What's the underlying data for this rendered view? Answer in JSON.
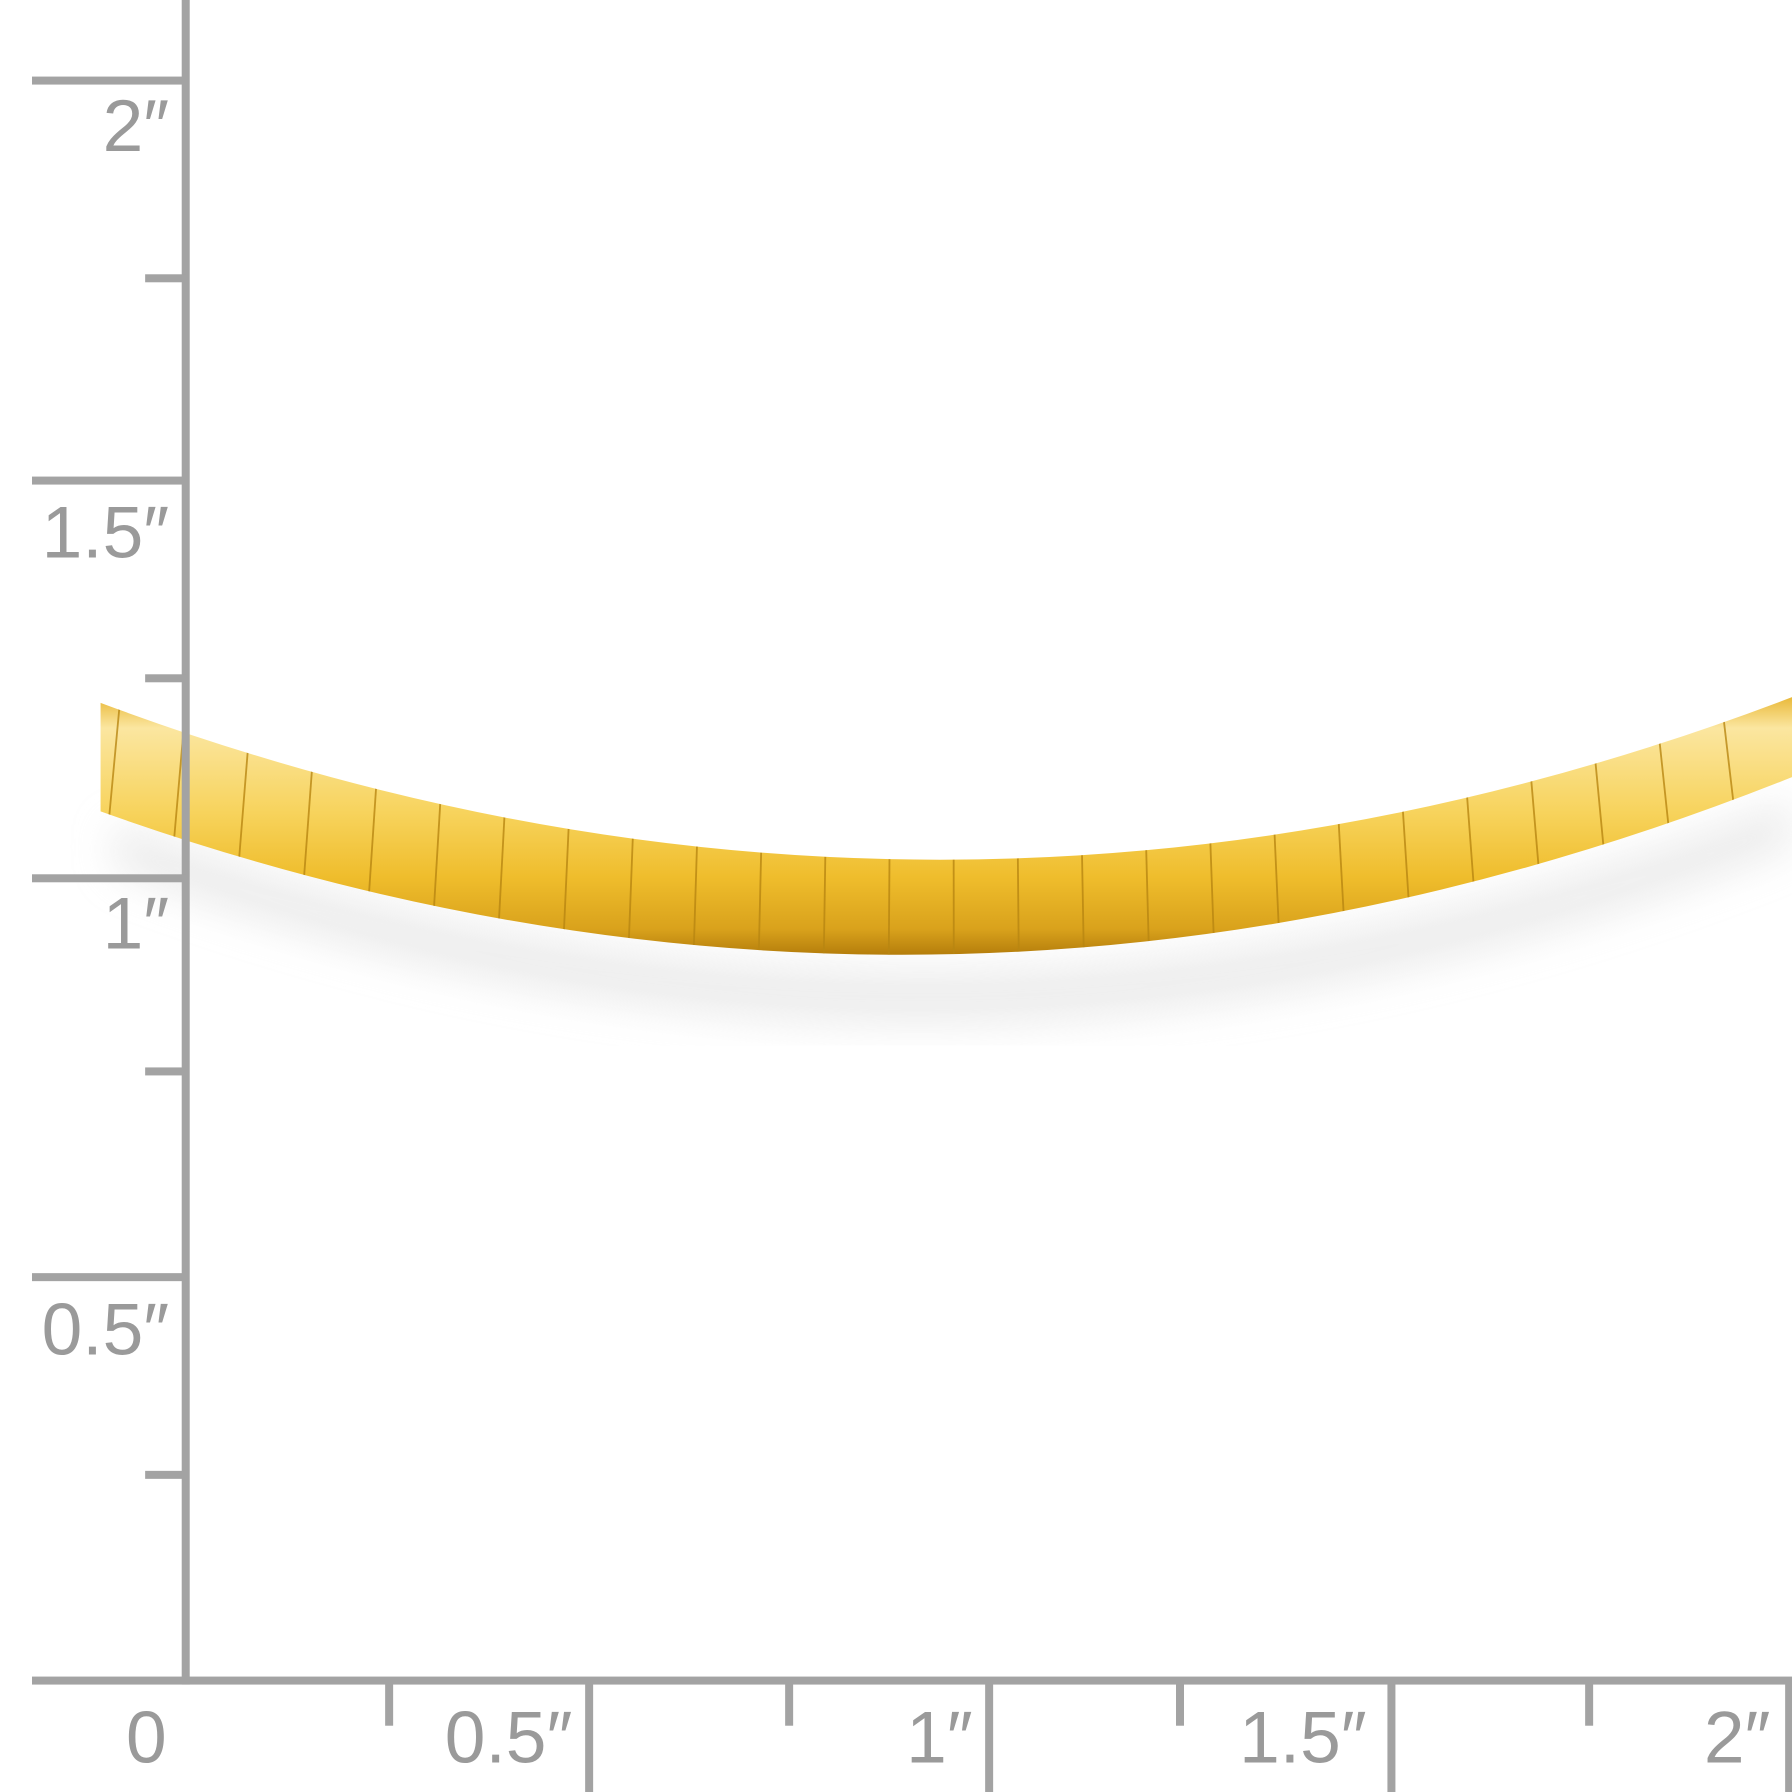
{
  "ruler": {
    "color": "#a3a3a3",
    "label_color": "#9a9a9a",
    "vertical_labels": [
      "2″",
      "1.5″",
      "1″",
      "0.5″"
    ],
    "horizontal_labels": [
      "0",
      "0.5″",
      "1″",
      "1.5″",
      "2″"
    ]
  },
  "product": {
    "type": "gold omega necklace",
    "colors": {
      "highlight": "#fbe6a0",
      "mid": "#f3c63d",
      "shadow": "#c98f12"
    }
  }
}
